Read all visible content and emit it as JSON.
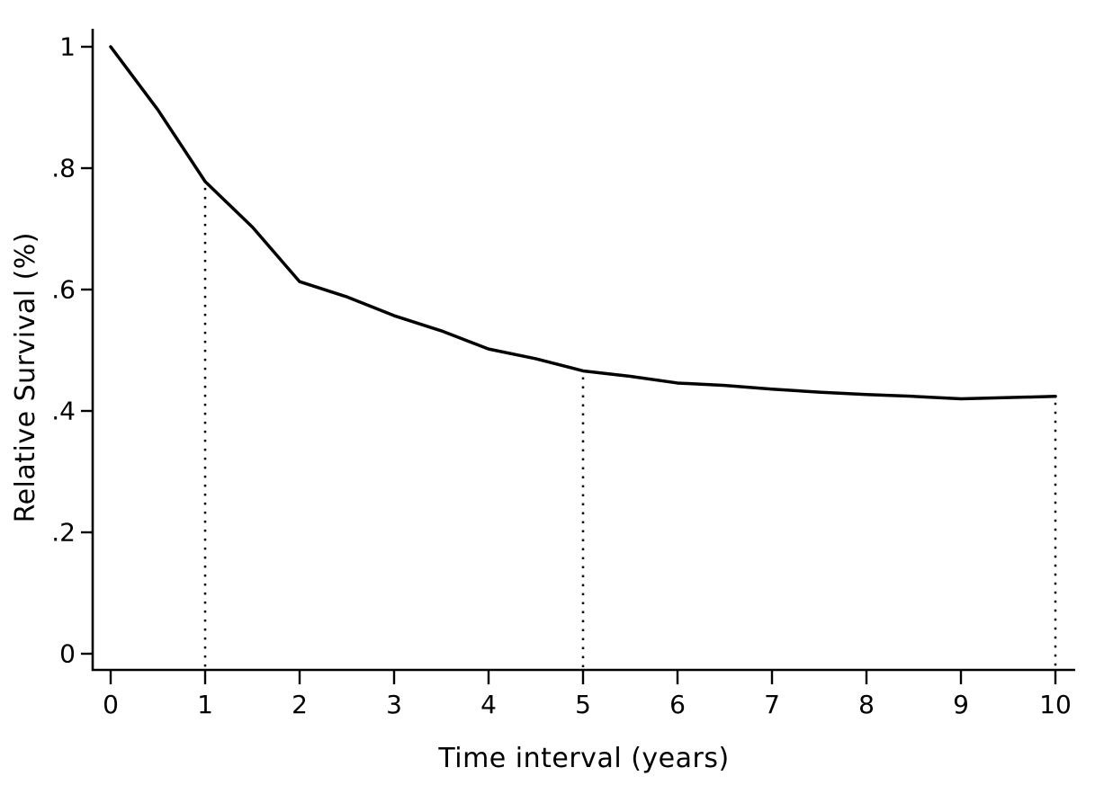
{
  "chart": {
    "background_color": "#ffffff",
    "line_color": "#000000",
    "axis_color": "#000000",
    "text_color": "#000000",
    "x_axis": {
      "title": "Time interval (years)",
      "tick_values": [
        0,
        1,
        2,
        3,
        4,
        5,
        6,
        7,
        8,
        9,
        10
      ],
      "tick_labels": [
        "0",
        "1",
        "2",
        "3",
        "4",
        "5",
        "6",
        "7",
        "8",
        "9",
        "10"
      ],
      "range": [
        0,
        10
      ]
    },
    "y_axis": {
      "title": "Relative Survival (%)",
      "tick_values": [
        0,
        0.2,
        0.4,
        0.6,
        0.8,
        1
      ],
      "tick_labels": [
        "0",
        ".2",
        ".4",
        ".6",
        ".8",
        "1"
      ],
      "range": [
        0,
        1
      ]
    },
    "reference_lines_x": [
      1,
      5,
      10
    ],
    "curve_points": [
      [
        0,
        1.0
      ],
      [
        0.5,
        0.896
      ],
      [
        1,
        0.778
      ],
      [
        1.5,
        0.703
      ],
      [
        2,
        0.613
      ],
      [
        2.5,
        0.588
      ],
      [
        3,
        0.557
      ],
      [
        3.5,
        0.532
      ],
      [
        4,
        0.502
      ],
      [
        4.5,
        0.486
      ],
      [
        5,
        0.466
      ],
      [
        5.5,
        0.457
      ],
      [
        6,
        0.446
      ],
      [
        6.5,
        0.442
      ],
      [
        7,
        0.436
      ],
      [
        7.5,
        0.431
      ],
      [
        8,
        0.427
      ],
      [
        8.5,
        0.424
      ],
      [
        9,
        0.42
      ],
      [
        9.5,
        0.422
      ],
      [
        10,
        0.424
      ]
    ]
  },
  "chart_data": {
    "type": "line",
    "title": "",
    "xlabel": "Time interval (years)",
    "ylabel": "Relative Survival (%)",
    "x": [
      0,
      1,
      2,
      3,
      4,
      5,
      6,
      7,
      8,
      9,
      10
    ],
    "series": [
      {
        "name": "Relative survival",
        "values": [
          1.0,
          0.778,
          0.613,
          0.557,
          0.502,
          0.466,
          0.446,
          0.436,
          0.427,
          0.42,
          0.424
        ]
      }
    ],
    "xlim": [
      0,
      10
    ],
    "ylim": [
      0,
      1
    ],
    "grid": false,
    "legend": false,
    "annotations": "dotted vertical reference lines dropped from the curve to the x-axis at x = 1, 5 and 10"
  }
}
